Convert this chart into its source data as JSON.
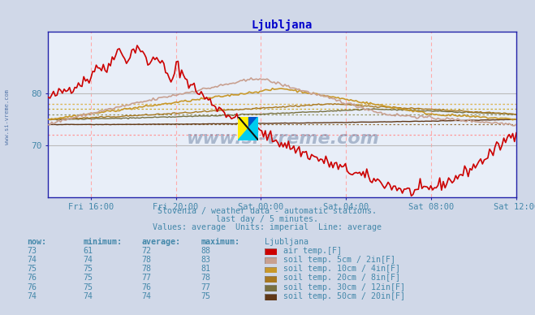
{
  "title": "Ljubljana",
  "title_color": "#0000cc",
  "bg_color": "#d0d8e8",
  "plot_bg_color": "#e8eef8",
  "vgrid_color": "#ffaaaa",
  "hgrid_color": "#cccccc",
  "axis_color": "#2222aa",
  "text_color": "#4488aa",
  "xlabel_ticks": [
    "Fri 16:00",
    "Fri 20:00",
    "Sat 00:00",
    "Sat 04:00",
    "Sat 08:00",
    "Sat 12:00"
  ],
  "tick_positions_norm": [
    0.0909,
    0.2727,
    0.4545,
    0.6364,
    0.8182,
    1.0
  ],
  "ylim": [
    60,
    92
  ],
  "yticks": [
    70,
    80
  ],
  "num_points": 264,
  "series_colors": {
    "air_temp": "#cc0000",
    "soil_5cm": "#c8a090",
    "soil_10cm": "#c8982a",
    "soil_20cm": "#a87820",
    "soil_30cm": "#787040",
    "soil_50cm": "#603818"
  },
  "avg_line_colors": {
    "air_temp": "#ff9999",
    "soil_5cm": "#ddbbbb",
    "soil_10cm": "#ddbb55",
    "soil_20cm": "#ccaa33",
    "soil_30cm": "#999966",
    "soil_50cm": "#997744"
  },
  "avgs": {
    "air_temp": 72,
    "soil_5cm": 78,
    "soil_10cm": 78,
    "soil_20cm": 77,
    "soil_30cm": 76,
    "soil_50cm": 74
  },
  "subtitle1": "Slovenia / weather data - automatic stations.",
  "subtitle2": "last day / 5 minutes.",
  "subtitle3": "Values: average  Units: imperial  Line: average",
  "legend_headers": [
    "now:",
    "minimum:",
    "average:",
    "maximum:",
    "Ljubljana"
  ],
  "legend_rows": [
    {
      "now": "73",
      "min": "61",
      "avg": "72",
      "max": "88",
      "color": "#cc0000",
      "label": "air temp.[F]"
    },
    {
      "now": "74",
      "min": "74",
      "avg": "78",
      "max": "83",
      "color": "#c8a090",
      "label": "soil temp. 5cm / 2in[F]"
    },
    {
      "now": "75",
      "min": "75",
      "avg": "78",
      "max": "81",
      "color": "#c8982a",
      "label": "soil temp. 10cm / 4in[F]"
    },
    {
      "now": "76",
      "min": "75",
      "avg": "77",
      "max": "78",
      "color": "#a87820",
      "label": "soil temp. 20cm / 8in[F]"
    },
    {
      "now": "76",
      "min": "75",
      "avg": "76",
      "max": "77",
      "color": "#787040",
      "label": "soil temp. 30cm / 12in[F]"
    },
    {
      "now": "74",
      "min": "74",
      "avg": "74",
      "max": "75",
      "color": "#603818",
      "label": "soil temp. 50cm / 20in[F]"
    }
  ],
  "watermark_text": "www.si-vreme.com",
  "watermark_color": "#1a3a6a",
  "left_text": "www.si-vreme.com",
  "left_text_color": "#5577aa"
}
